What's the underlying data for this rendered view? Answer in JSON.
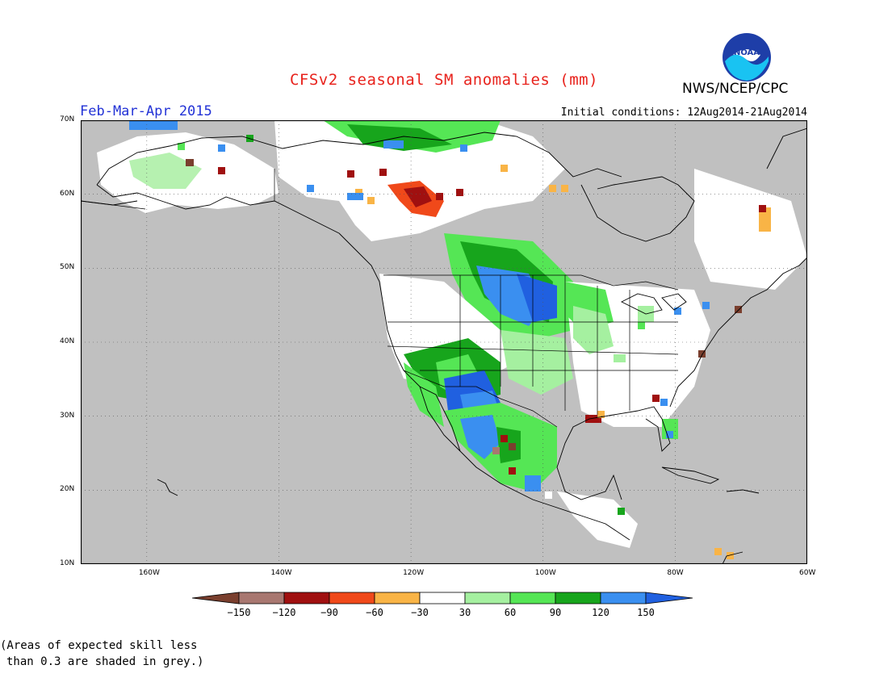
{
  "title": "CFSv2 seasonal SM anomalies (mm)",
  "period": "Feb-Mar-Apr 2015",
  "initial_conditions": "Initial conditions: 12Aug2014-21Aug2014",
  "agency": "NWS/NCEP/CPC",
  "logo_text": "NOAA",
  "map": {
    "lat_range": [
      10,
      70
    ],
    "lon_range": [
      -170,
      -60
    ],
    "lat_ticks": [
      "70N",
      "60N",
      "50N",
      "40N",
      "30N",
      "20N",
      "10N"
    ],
    "lon_ticks": [
      "160W",
      "140W",
      "120W",
      "100W",
      "80W",
      "60W"
    ],
    "lat_tick_values": [
      70,
      60,
      50,
      40,
      30,
      20,
      10
    ],
    "lon_tick_values": [
      -160,
      -140,
      -120,
      -100,
      -80,
      -60
    ],
    "grid": true,
    "colors": {
      "ocean": "#c0c0c0",
      "land_low_skill": "#c0c0c0",
      "coast": "#000000"
    }
  },
  "colorbar": {
    "labels": [
      "-150",
      "-120",
      "-90",
      "-60",
      "-30",
      "30",
      "60",
      "90",
      "120",
      "150"
    ],
    "colors": [
      "#7a3f2e",
      "#a87770",
      "#a01010",
      "#f0491a",
      "#f9b446",
      "#ffffff",
      "#a5f0a0",
      "#55e655",
      "#17a51c",
      "#3a8ff0",
      "#2060e0"
    ]
  },
  "footnote": {
    "line1": "(Areas of expected skill less",
    "line2": "than 0.3 are shaded in grey.)"
  }
}
